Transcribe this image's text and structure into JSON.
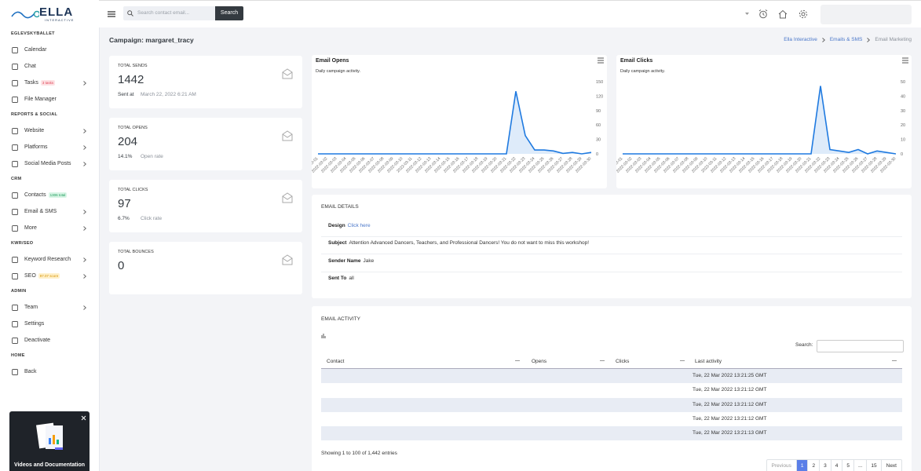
{
  "logo": {
    "name": "ELLA",
    "tagline": "INTERACTIVE"
  },
  "sidebar": {
    "sections": [
      {
        "title": "EGLEVSKYBALLET",
        "items": [
          {
            "label": "Calendar"
          },
          {
            "label": "Chat"
          },
          {
            "label": "Tasks",
            "badge": "3 tasks",
            "badge_style": "danger",
            "submenu": true
          },
          {
            "label": "File Manager"
          }
        ]
      },
      {
        "title": "REPORTS & SOCIAL",
        "items": [
          {
            "label": "Website",
            "submenu": true
          },
          {
            "label": "Platforms",
            "submenu": true
          },
          {
            "label": "Social Media Posts",
            "submenu": true
          }
        ]
      },
      {
        "title": "CRM",
        "items": [
          {
            "label": "Contacts",
            "badge": "1306 total",
            "badge_style": "success"
          },
          {
            "label": "Email & SMS",
            "submenu": true
          },
          {
            "label": "More",
            "submenu": true
          }
        ]
      },
      {
        "title": "KWR/SEO",
        "items": [
          {
            "label": "Keyword Research",
            "submenu": true
          },
          {
            "label": "SEO",
            "badge": "97.07 score",
            "badge_style": "warning",
            "submenu": true
          }
        ]
      },
      {
        "title": "ADMIN",
        "items": [
          {
            "label": "Team",
            "submenu": true
          },
          {
            "label": "Settings"
          },
          {
            "label": "Deactivate"
          }
        ]
      },
      {
        "title": "HOME",
        "items": [
          {
            "label": "Back"
          }
        ]
      }
    ]
  },
  "promo": {
    "title": "Videos and Documentation"
  },
  "topbar": {
    "search_placeholder": "Search contact email...",
    "search_button": "Search"
  },
  "page": {
    "title": "Campaign: margaret_tracy",
    "breadcrumb": [
      "Ella Interactive",
      "Emails & SMS",
      "Email Marketing"
    ]
  },
  "stats": [
    {
      "label": "TOTAL SENDS",
      "value": "1442",
      "note_strong": "Sent at",
      "note": "March 22, 2022 6:21 AM"
    },
    {
      "label": "TOTAL OPENS",
      "value": "204",
      "note_strong": "14.1%",
      "note": "Open rate"
    },
    {
      "label": "TOTAL CLICKS",
      "value": "97",
      "note_strong": "6.7%",
      "note": "Click rate"
    },
    {
      "label": "TOTAL BOUNCES",
      "value": "0"
    }
  ],
  "chart_data": [
    {
      "type": "area",
      "title": "Email Opens",
      "subtitle": "Daily campaign activity.",
      "color": "#1f7ae0",
      "x": [
        "2022-03-01",
        "2022-03-02",
        "2022-03-03",
        "2022-03-04",
        "2022-03-05",
        "2022-03-06",
        "2022-03-07",
        "2022-03-08",
        "2022-03-09",
        "2022-03-10",
        "2022-03-11",
        "2022-03-12",
        "2022-03-13",
        "2022-03-14",
        "2022-03-15",
        "2022-03-16",
        "2022-03-17",
        "2022-03-18",
        "2022-03-19",
        "2022-03-20",
        "2022-03-21",
        "2022-03-22",
        "2022-03-23",
        "2022-03-24",
        "2022-03-25",
        "2022-03-26",
        "2022-03-27",
        "2022-03-28",
        "2022-03-29",
        "2022-03-30"
      ],
      "values": [
        0,
        0,
        0,
        0,
        0,
        0,
        0,
        0,
        0,
        0,
        0,
        0,
        0,
        0,
        0,
        0,
        0,
        0,
        0,
        0,
        0,
        130,
        38,
        8,
        8,
        6,
        1,
        3,
        0,
        3
      ],
      "ylim": [
        0,
        150
      ],
      "yticks": [
        0,
        30,
        60,
        90,
        120,
        150
      ]
    },
    {
      "type": "area",
      "title": "Email Clicks",
      "subtitle": "Daily campaign activity.",
      "color": "#1f7ae0",
      "x": [
        "2022-03-01",
        "2022-03-02",
        "2022-03-03",
        "2022-03-04",
        "2022-03-05",
        "2022-03-06",
        "2022-03-07",
        "2022-03-08",
        "2022-03-09",
        "2022-03-10",
        "2022-03-11",
        "2022-03-12",
        "2022-03-13",
        "2022-03-14",
        "2022-03-15",
        "2022-03-16",
        "2022-03-17",
        "2022-03-18",
        "2022-03-19",
        "2022-03-20",
        "2022-03-21",
        "2022-03-22",
        "2022-03-23",
        "2022-03-24",
        "2022-03-25",
        "2022-03-26",
        "2022-03-27",
        "2022-03-28",
        "2022-03-29",
        "2022-03-30"
      ],
      "values": [
        0,
        0,
        0,
        0,
        0,
        0,
        0,
        0,
        0,
        0,
        0,
        0,
        0,
        0,
        0,
        0,
        0,
        0,
        0,
        0,
        0,
        47,
        3,
        2,
        1,
        3,
        0,
        2,
        1,
        0
      ],
      "ylim": [
        0,
        50
      ],
      "yticks": [
        0,
        10,
        20,
        30,
        40,
        50
      ]
    }
  ],
  "email_details": {
    "title": "EMAIL DETAILS",
    "rows": [
      {
        "label": "Design",
        "value": "Click here",
        "link": true
      },
      {
        "label": "Subject",
        "value": "Attention Advanced Dancers, Teachers, and Professional Dancers! You do not want to miss this workshop!"
      },
      {
        "label": "Sender Name",
        "value": "Jake"
      },
      {
        "label": "Sent To",
        "value": "all"
      }
    ]
  },
  "email_activity": {
    "title": "EMAIL ACTIVITY",
    "search_label": "Search:",
    "columns": [
      "Contact",
      "Opens",
      "Clicks",
      "Last activity"
    ],
    "rows": [
      {
        "last_activity": "Tue, 22 Mar 2022 13:21:25 GMT"
      },
      {
        "last_activity": "Tue, 22 Mar 2022 13:21:12 GMT"
      },
      {
        "last_activity": "Tue, 22 Mar 2022 13:21:12 GMT"
      },
      {
        "last_activity": "Tue, 22 Mar 2022 13:21:12 GMT"
      },
      {
        "last_activity": "Tue, 22 Mar 2022 13:21:13 GMT"
      }
    ],
    "summary": "Showing 1 to 100 of 1,442 entries",
    "pagination": [
      "Previous",
      "1",
      "2",
      "3",
      "4",
      "5",
      "...",
      "15",
      "Next"
    ],
    "active_page_index": 1
  }
}
